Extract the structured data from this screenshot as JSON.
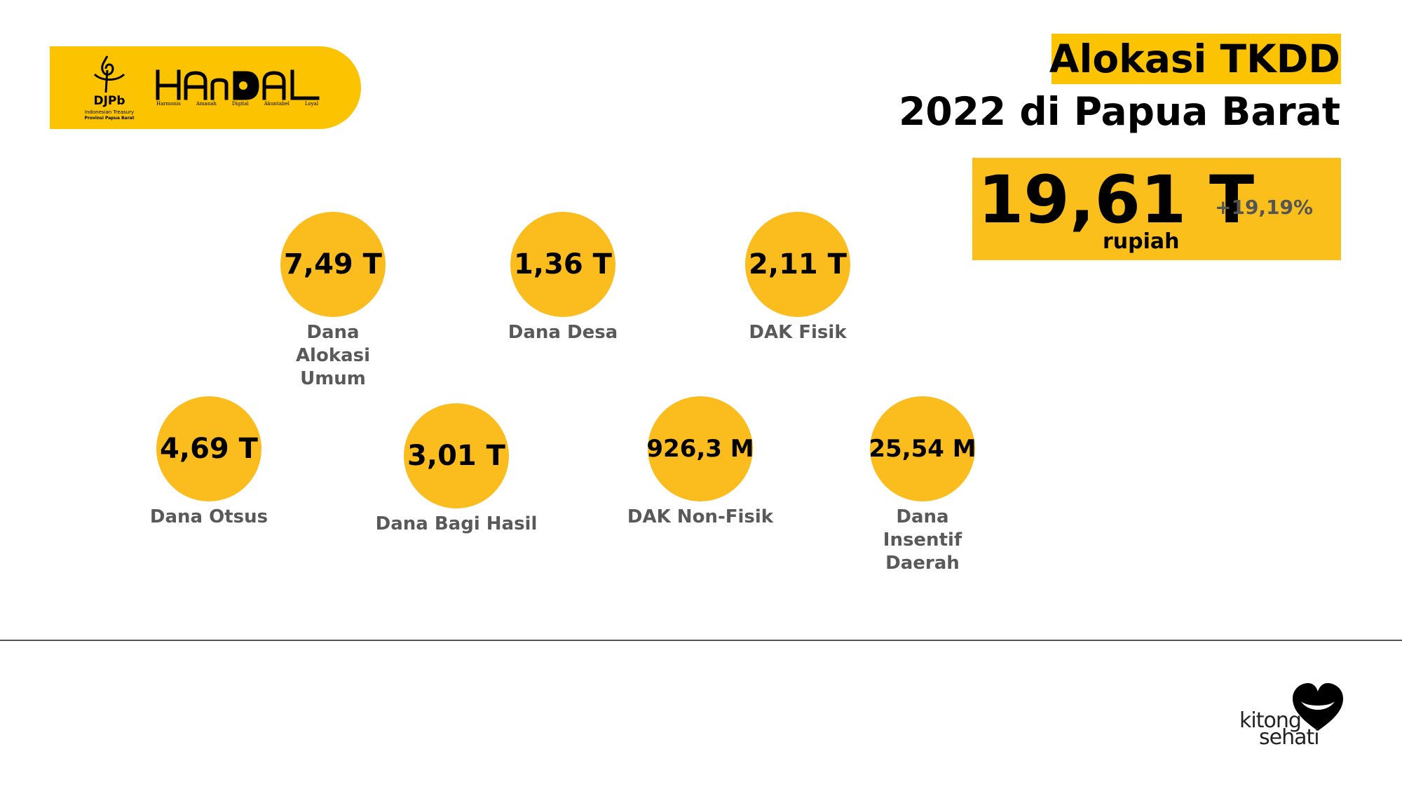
{
  "logo": {
    "djpb_name": "DJPb",
    "djpb_sub1": "Indonesian Treasury",
    "djpb_sub2": "Provinsi Papua Barat",
    "handal_title": "HAnDAL",
    "handal_words": [
      "Harmonis",
      "Amanah",
      "Digital",
      "Akuntabel",
      "Loyal"
    ]
  },
  "header": {
    "title_line1": "Alokasi TKDD",
    "title_line2": "2022 di Papua Barat"
  },
  "total": {
    "value": "19,61 T",
    "unit": "rupiah",
    "growth": "+19,19%"
  },
  "items": [
    {
      "value": "7,49 T",
      "label": "Dana Alokasi Umum"
    },
    {
      "value": "1,36 T",
      "label": "Dana Desa"
    },
    {
      "value": "2,11 T",
      "label": "DAK Fisik"
    },
    {
      "value": "4,69 T",
      "label": "Dana Otsus"
    },
    {
      "value": "3,01 T",
      "label": "Dana Bagi Hasil"
    },
    {
      "value": "926,3 M",
      "label": "DAK Non-Fisik"
    },
    {
      "value": "25,54 M",
      "label": "Dana Insentif Daerah"
    }
  ],
  "footer": {
    "brand_line1": "kitong",
    "brand_line2": "sehati"
  },
  "colors": {
    "accent": "#fcc400",
    "circle": "#fbbc1e",
    "label_gray": "#595959"
  }
}
